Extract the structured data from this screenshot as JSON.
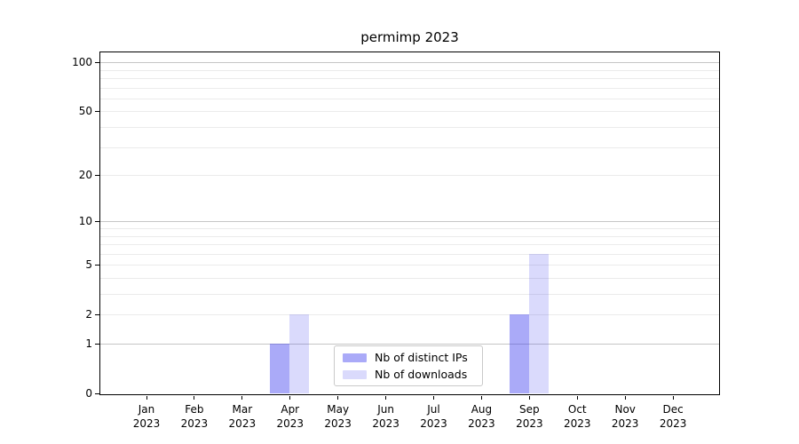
{
  "title": "permimp 2023",
  "chart_data": {
    "type": "bar",
    "title": "permimp 2023",
    "categories": [
      "Jan 2023",
      "Feb 2023",
      "Mar 2023",
      "Apr 2023",
      "May 2023",
      "Jun 2023",
      "Jul 2023",
      "Aug 2023",
      "Sep 2023",
      "Oct 2023",
      "Nov 2023",
      "Dec 2023"
    ],
    "series": [
      {
        "name": "Nb of distinct IPs",
        "color": "rgba(52,52,238,0.42)",
        "solid_color": "#aaaaf8",
        "values": [
          0,
          0,
          0,
          1,
          0,
          0,
          0,
          0,
          2,
          0,
          0,
          0
        ]
      },
      {
        "name": "Nb of downloads",
        "color": "rgba(52,52,238,0.18)",
        "solid_color": "#dbdbfc",
        "values": [
          0,
          0,
          0,
          2,
          0,
          0,
          0,
          0,
          6,
          0,
          0,
          0
        ]
      }
    ],
    "xlabel": "",
    "ylabel": "",
    "y_axis": {
      "scale": "log-like (position ~ log10(1+y))",
      "tick_labels": [
        "0",
        "1",
        "2",
        "5",
        "10",
        "20",
        "50",
        "100"
      ],
      "tick_values": [
        0,
        1,
        2,
        5,
        10,
        20,
        50,
        100
      ],
      "major_grid_values": [
        1,
        10,
        100
      ],
      "minor_grid_values": [
        2,
        3,
        4,
        5,
        6,
        7,
        8,
        9,
        20,
        30,
        40,
        50,
        60,
        70,
        80,
        90
      ],
      "ylim": [
        0,
        116
      ]
    },
    "grid": true,
    "legend_position": "inside bottom-center"
  },
  "colors": {
    "bar_distinct_ips": "#aaaaf8",
    "bar_downloads": "#dbdbfc",
    "grid_major": "#c6c6c6",
    "grid_minor": "#ebebeb",
    "spine": "#000000",
    "background": "#ffffff",
    "text": "#000000"
  }
}
